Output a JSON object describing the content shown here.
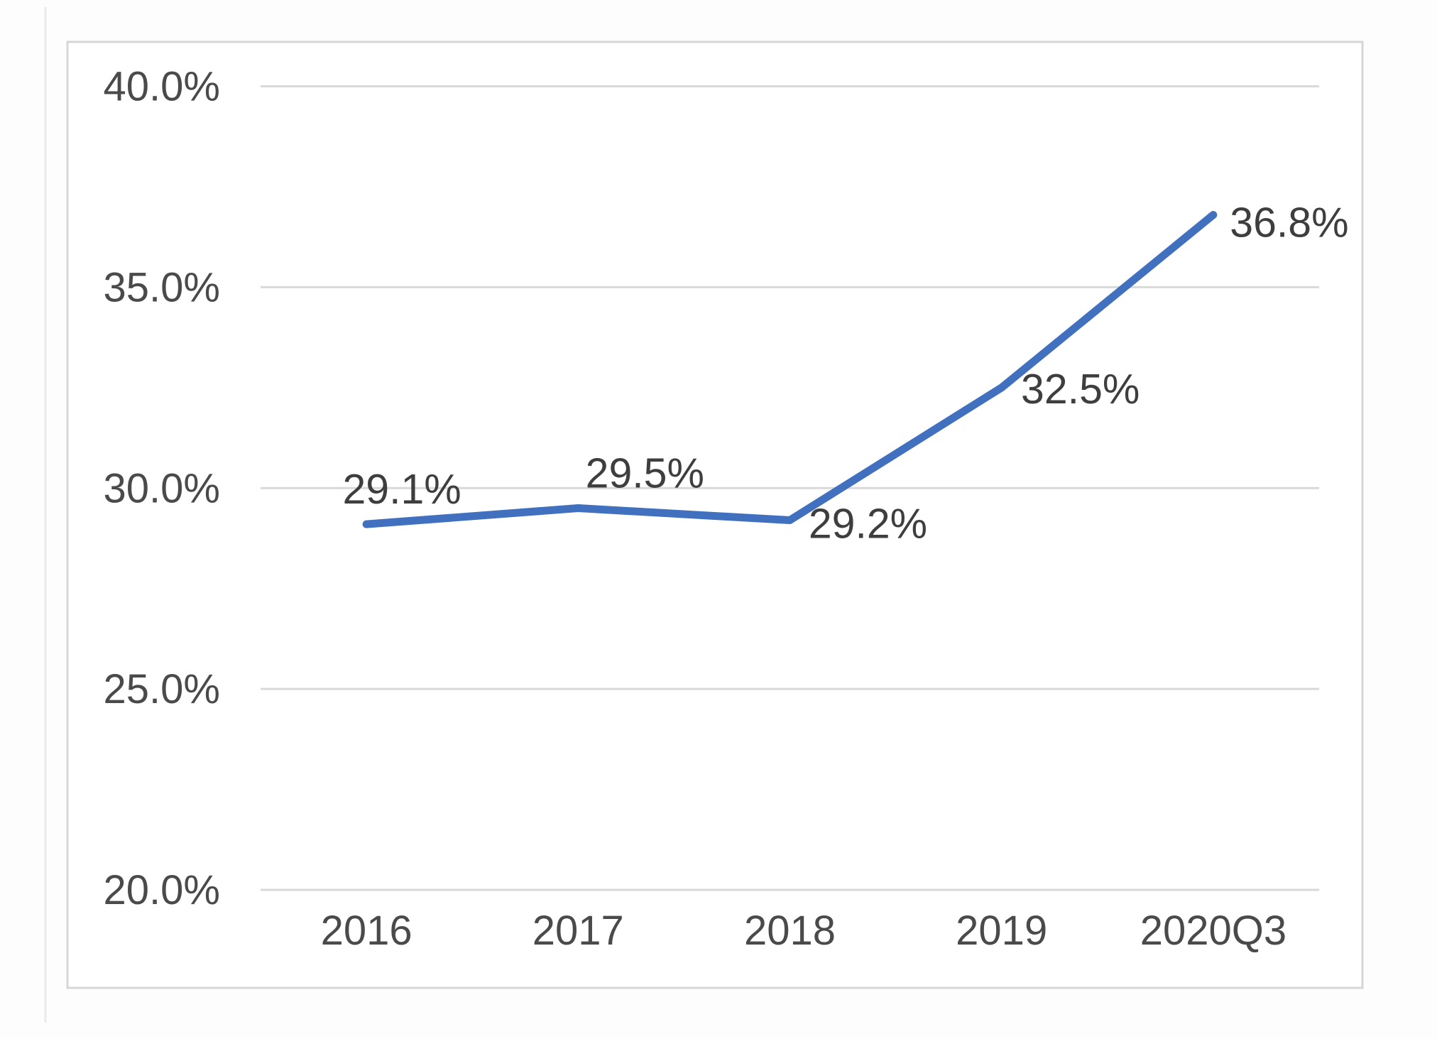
{
  "chart_data": {
    "type": "line",
    "categories": [
      "2016",
      "2017",
      "2018",
      "2019",
      "2020Q3"
    ],
    "values": [
      29.1,
      29.5,
      29.2,
      32.5,
      36.8
    ],
    "data_labels": [
      "29.1%",
      "29.5%",
      "29.2%",
      "32.5%",
      "36.8%"
    ],
    "title": "",
    "xlabel": "",
    "ylabel": "",
    "ylim": [
      20,
      40
    ],
    "y_ticks": [
      40,
      35,
      30,
      25,
      20
    ],
    "y_tick_labels": [
      "40.0%",
      "35.0%",
      "30.0%",
      "25.0%",
      "20.0%"
    ],
    "grid": true,
    "legend": false,
    "colors": {
      "line": "#4170bf",
      "gridline": "#d9d9d9",
      "frame_border": "#d6d6d6",
      "axis_text": "#4a4a4a",
      "data_label_text": "#3e3e3e",
      "background": "#ffffff",
      "page_edge": "#e9e9e9"
    }
  }
}
